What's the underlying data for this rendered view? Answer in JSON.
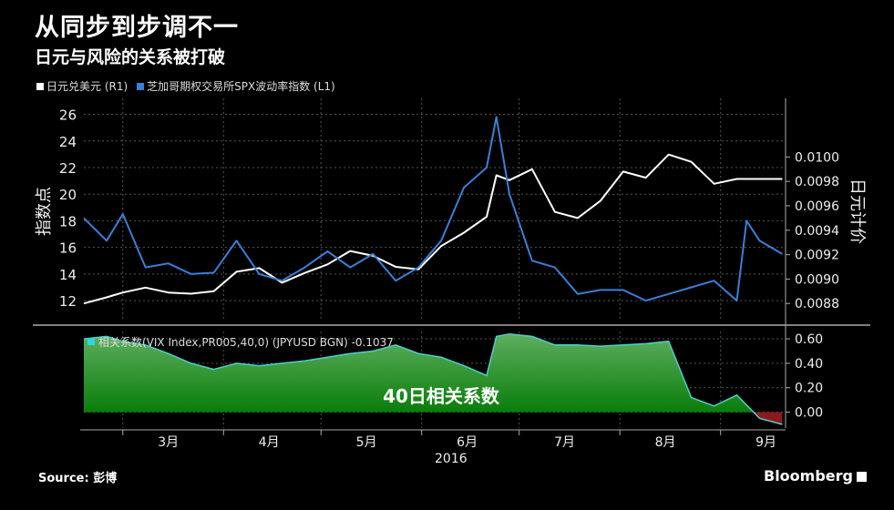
{
  "header": {
    "title": "从同步到步调不一",
    "subtitle": "日元与风险的关系被打破"
  },
  "legend": {
    "items": [
      {
        "label": "日元兑美元 (R1)",
        "color": "#ffffff"
      },
      {
        "label": "芝加哥期权交易所SPX波动率指数 (L1)",
        "color": "#3a7fd8"
      }
    ]
  },
  "footer": {
    "source": "Source: 彭博",
    "brand": "Bloomberg"
  },
  "chart_data": [
    {
      "type": "line",
      "panel": "top",
      "ylabel_left": "指数点",
      "ylabel_right": "日元计价",
      "yleft_ticks": [
        "26",
        "24",
        "22",
        "20",
        "18",
        "16",
        "14",
        "12"
      ],
      "yleft_range": [
        10.5,
        27.2
      ],
      "yright_ticks": [
        "0.0100",
        "0.0098",
        "0.0096",
        "0.0094",
        "0.0092",
        "0.0090",
        "0.0088"
      ],
      "yright_range": [
        0.00866,
        0.01048
      ],
      "x_range": [
        "2016-02-18",
        "2016-09-21"
      ],
      "series": [
        {
          "name": "日元兑美元 (R1)",
          "axis": "right",
          "color": "#ffffff",
          "x": [
            "2016-02-18",
            "2016-02-25",
            "2016-03-01",
            "2016-03-08",
            "2016-03-15",
            "2016-03-22",
            "2016-03-29",
            "2016-04-05",
            "2016-04-12",
            "2016-04-19",
            "2016-04-26",
            "2016-05-03",
            "2016-05-10",
            "2016-05-17",
            "2016-05-24",
            "2016-05-31",
            "2016-06-07",
            "2016-06-14",
            "2016-06-21",
            "2016-06-24",
            "2016-06-28",
            "2016-07-05",
            "2016-07-12",
            "2016-07-19",
            "2016-07-26",
            "2016-08-02",
            "2016-08-09",
            "2016-08-16",
            "2016-08-23",
            "2016-08-30",
            "2016-09-06",
            "2016-09-13",
            "2016-09-20"
          ],
          "values": [
            0.0088,
            0.00885,
            0.00889,
            0.00893,
            0.00889,
            0.00888,
            0.0089,
            0.00906,
            0.00909,
            0.00897,
            0.00905,
            0.00912,
            0.00923,
            0.00919,
            0.0091,
            0.00908,
            0.00927,
            0.00938,
            0.00951,
            0.00985,
            0.00981,
            0.0099,
            0.00955,
            0.0095,
            0.00964,
            0.00988,
            0.00983,
            0.01002,
            0.00996,
            0.00978,
            0.00982,
            0.00982,
            0.00982
          ]
        },
        {
          "name": "芝加哥期权交易所SPX波动率指数 (L1)",
          "axis": "left",
          "color": "#3a7fd8",
          "x": [
            "2016-02-18",
            "2016-02-25",
            "2016-03-01",
            "2016-03-08",
            "2016-03-15",
            "2016-03-22",
            "2016-03-29",
            "2016-04-05",
            "2016-04-12",
            "2016-04-19",
            "2016-04-26",
            "2016-05-03",
            "2016-05-10",
            "2016-05-17",
            "2016-05-24",
            "2016-05-31",
            "2016-06-07",
            "2016-06-14",
            "2016-06-21",
            "2016-06-24",
            "2016-06-28",
            "2016-07-05",
            "2016-07-12",
            "2016-07-19",
            "2016-07-26",
            "2016-08-02",
            "2016-08-09",
            "2016-08-16",
            "2016-08-23",
            "2016-08-30",
            "2016-09-06",
            "2016-09-09",
            "2016-09-13",
            "2016-09-20"
          ],
          "values": [
            18.2,
            16.5,
            18.5,
            14.5,
            14.8,
            14.0,
            14.1,
            16.5,
            14.0,
            13.5,
            14.5,
            15.7,
            14.5,
            15.5,
            13.5,
            14.5,
            16.5,
            20.5,
            22.0,
            25.8,
            20.0,
            15.0,
            14.5,
            12.5,
            12.8,
            12.8,
            12.0,
            12.5,
            13.0,
            13.5,
            12.0,
            18.0,
            16.5,
            15.5
          ]
        }
      ]
    },
    {
      "type": "area",
      "panel": "bottom",
      "label": "相关系数(VIX Index,PR005,40,0) (JPYUSD BGN) -0.1037",
      "center_label": "40日相关系数",
      "y_ticks": [
        "0.60",
        "0.40",
        "0.20",
        "0.00"
      ],
      "y_range": [
        -0.13,
        0.66
      ],
      "positive_color": "#2e9a2e",
      "negative_color": "#8b1a1a",
      "x": [
        "2016-02-18",
        "2016-02-25",
        "2016-03-01",
        "2016-03-08",
        "2016-03-15",
        "2016-03-22",
        "2016-03-29",
        "2016-04-05",
        "2016-04-12",
        "2016-04-19",
        "2016-04-26",
        "2016-05-03",
        "2016-05-10",
        "2016-05-17",
        "2016-05-24",
        "2016-05-31",
        "2016-06-07",
        "2016-06-14",
        "2016-06-21",
        "2016-06-24",
        "2016-06-28",
        "2016-07-05",
        "2016-07-12",
        "2016-07-19",
        "2016-07-26",
        "2016-08-02",
        "2016-08-09",
        "2016-08-16",
        "2016-08-23",
        "2016-08-30",
        "2016-09-06",
        "2016-09-13",
        "2016-09-20"
      ],
      "values": [
        0.6,
        0.62,
        0.58,
        0.55,
        0.48,
        0.4,
        0.35,
        0.4,
        0.38,
        0.4,
        0.42,
        0.45,
        0.48,
        0.5,
        0.55,
        0.48,
        0.45,
        0.38,
        0.3,
        0.62,
        0.64,
        0.62,
        0.55,
        0.55,
        0.54,
        0.55,
        0.56,
        0.58,
        0.12,
        0.05,
        0.14,
        -0.05,
        -0.1
      ]
    }
  ],
  "x_axis": {
    "months": [
      "3月",
      "4月",
      "5月",
      "6月",
      "7月",
      "8月",
      "9月"
    ],
    "year": "2016"
  }
}
